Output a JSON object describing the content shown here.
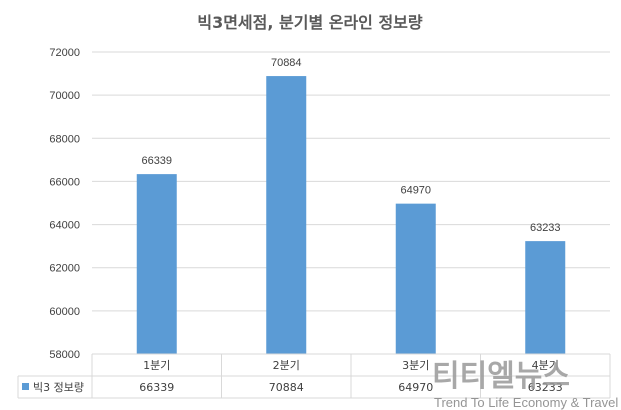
{
  "chart_data": {
    "type": "bar",
    "title": "빅3면세점, 분기별 온라인 정보량",
    "categories": [
      "1분기",
      "2분기",
      "3분기",
      "4분기"
    ],
    "series": [
      {
        "name": "빅3 정보량",
        "values": [
          66339,
          70884,
          64970,
          63233
        ],
        "color": "#5B9BD5"
      }
    ],
    "y_ticks": [
      "72000",
      "70000",
      "68000",
      "66000",
      "64000",
      "62000",
      "60000",
      "58000"
    ],
    "ylim": [
      58000,
      72000
    ],
    "grid": true,
    "legend": "data-table-left",
    "data_table": true
  },
  "watermark": {
    "logo": "티티엘뉴스",
    "tagline": "Trend To Life Economy & Travel"
  }
}
